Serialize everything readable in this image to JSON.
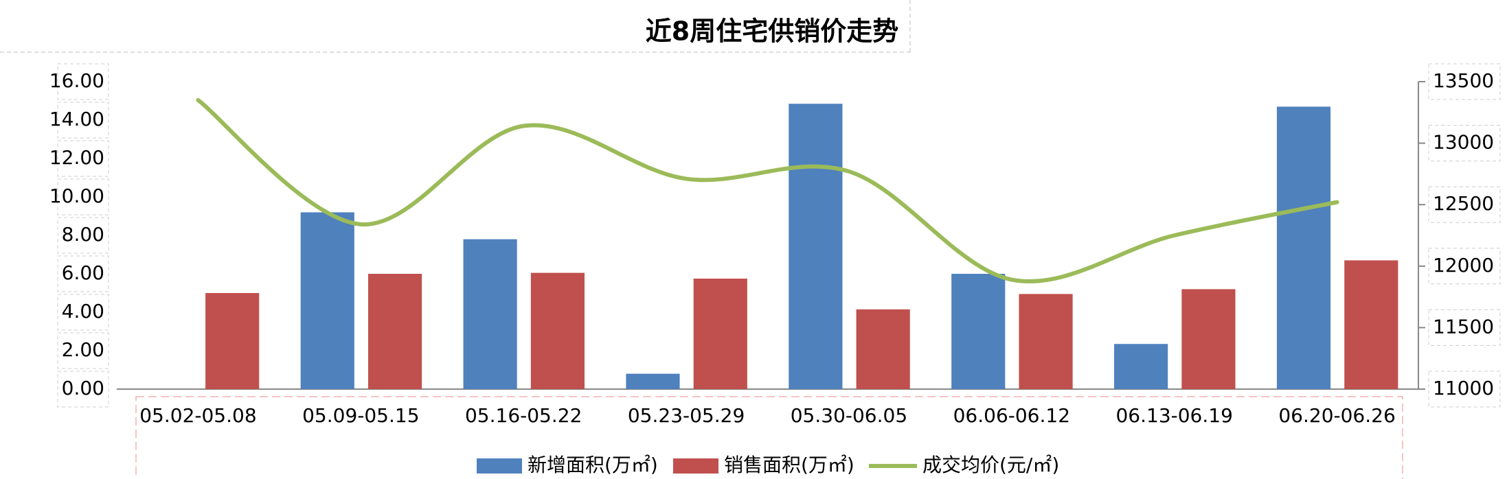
{
  "chart_data": {
    "type": "bar_line",
    "title": "近8周住宅供销价走势",
    "categories": [
      "05.02-05.08",
      "05.09-05.15",
      "05.16-05.22",
      "05.23-05.29",
      "05.30-06.05",
      "06.06-06.12",
      "06.13-06.19",
      "06.20-06.26"
    ],
    "series": [
      {
        "name": "新增面积(万㎡)",
        "color": "#4f81bd",
        "type": "bar",
        "values": [
          0,
          9.2,
          7.8,
          0.8,
          14.85,
          6.0,
          2.35,
          14.7
        ]
      },
      {
        "name": "销售面积(万㎡)",
        "color": "#c0504d",
        "type": "bar",
        "values": [
          5.0,
          6.0,
          6.05,
          5.75,
          4.15,
          4.95,
          5.2,
          6.7
        ]
      },
      {
        "name": "成交均价(元/㎡)",
        "color": "#9bbb59",
        "type": "line",
        "axis": "y2",
        "values": [
          13350,
          12340,
          13140,
          12710,
          12770,
          11890,
          12250,
          12520
        ]
      }
    ],
    "ylim": [
      0,
      16
    ],
    "yticks": [
      {
        "value": 0,
        "label": "0.00"
      },
      {
        "value": 2,
        "label": "2.00"
      },
      {
        "value": 4,
        "label": "4.00"
      },
      {
        "value": 6,
        "label": "6.00"
      },
      {
        "value": 8,
        "label": "8.00"
      },
      {
        "value": 10,
        "label": "10.00"
      },
      {
        "value": 12,
        "label": "12.00"
      },
      {
        "value": 14,
        "label": "14.00"
      },
      {
        "value": 16,
        "label": "16.00"
      }
    ],
    "y2lim": [
      11000,
      13500
    ],
    "y2ticks": [
      11000,
      11500,
      12000,
      12500,
      13000,
      13500
    ],
    "legend": "bottom"
  }
}
